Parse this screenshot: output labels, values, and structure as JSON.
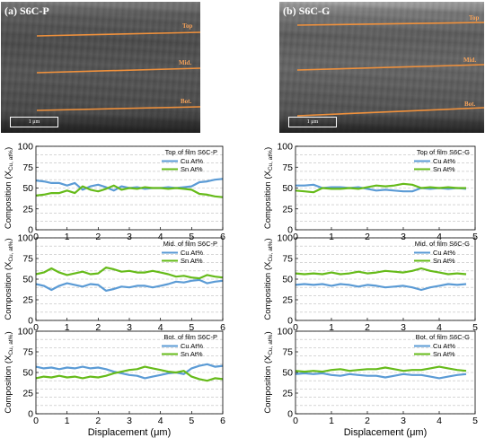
{
  "sem_images": [
    {
      "label": "(a) S6C-P",
      "line_labels": [
        "Top",
        "Mid.",
        "Bot."
      ],
      "scale_label": "1 μm"
    },
    {
      "label": "(b) S6C-G",
      "line_labels": [
        "Top",
        "Mid.",
        "Bot."
      ],
      "scale_label": "1 μm"
    }
  ],
  "colors": {
    "cu": "#5b9bd5",
    "sn": "#66bb1a",
    "sem_line": "#f0913c"
  },
  "chart_data": [
    {
      "type": "line",
      "title": "Top of film S6C-P",
      "xlabel": "",
      "ylabel": "Composition (XCu, at%)",
      "xlim": [
        0,
        6
      ],
      "ylim": [
        0,
        100
      ],
      "xticks": [
        0,
        1,
        2,
        3,
        4,
        5,
        6
      ],
      "yticks": [
        0,
        25,
        50,
        75,
        100
      ],
      "grid": true,
      "legend": "top-right",
      "series": [
        {
          "name": "Cu At%",
          "x": [
            0,
            0.25,
            0.5,
            0.75,
            1,
            1.25,
            1.5,
            1.75,
            2,
            2.25,
            2.5,
            2.75,
            3,
            3.25,
            3.5,
            3.75,
            4,
            4.25,
            4.5,
            4.75,
            5,
            5.25,
            5.5,
            5.75,
            6
          ],
          "y": [
            59,
            58,
            56,
            56,
            53,
            56,
            48,
            52,
            54,
            51,
            47,
            52,
            50,
            51,
            49,
            50,
            50,
            51,
            50,
            51,
            52,
            57,
            58,
            60,
            61
          ]
        },
        {
          "name": "Sn At%",
          "x": [
            0,
            0.25,
            0.5,
            0.75,
            1,
            1.25,
            1.5,
            1.75,
            2,
            2.25,
            2.5,
            2.75,
            3,
            3.25,
            3.5,
            3.75,
            4,
            4.25,
            4.5,
            4.75,
            5,
            5.25,
            5.5,
            5.75,
            6
          ],
          "y": [
            41,
            42,
            44,
            44,
            47,
            44,
            52,
            48,
            46,
            49,
            53,
            48,
            50,
            49,
            51,
            50,
            50,
            49,
            50,
            49,
            48,
            43,
            42,
            40,
            39
          ]
        }
      ]
    },
    {
      "type": "line",
      "title": "Mid. of film S6C-P",
      "xlabel": "",
      "ylabel": "Composition (XCu, at%)",
      "xlim": [
        0,
        6
      ],
      "ylim": [
        0,
        100
      ],
      "xticks": [
        0,
        1,
        2,
        3,
        4,
        5,
        6
      ],
      "yticks": [
        0,
        25,
        50,
        75,
        100
      ],
      "grid": true,
      "legend": "top-right",
      "series": [
        {
          "name": "Cu At%",
          "x": [
            0,
            0.25,
            0.5,
            0.75,
            1,
            1.25,
            1.5,
            1.75,
            2,
            2.25,
            2.5,
            2.75,
            3,
            3.25,
            3.5,
            3.75,
            4,
            4.25,
            4.5,
            4.75,
            5,
            5.25,
            5.5,
            5.75,
            6
          ],
          "y": [
            44,
            42,
            37,
            42,
            45,
            43,
            41,
            44,
            43,
            36,
            38,
            41,
            40,
            42,
            42,
            40,
            42,
            44,
            47,
            46,
            48,
            49,
            45,
            47,
            48
          ]
        },
        {
          "name": "Sn At%",
          "x": [
            0,
            0.25,
            0.5,
            0.75,
            1,
            1.25,
            1.5,
            1.75,
            2,
            2.25,
            2.5,
            2.75,
            3,
            3.25,
            3.5,
            3.75,
            4,
            4.25,
            4.5,
            4.75,
            5,
            5.25,
            5.5,
            5.75,
            6
          ],
          "y": [
            56,
            58,
            63,
            58,
            55,
            57,
            59,
            56,
            57,
            64,
            62,
            59,
            60,
            58,
            58,
            60,
            58,
            56,
            53,
            54,
            52,
            51,
            55,
            53,
            52
          ]
        }
      ]
    },
    {
      "type": "line",
      "title": "Bot. of film S6C-P",
      "xlabel": "Displacement (μm)",
      "ylabel": "Composition (XCu, at%)",
      "xlim": [
        0,
        6
      ],
      "ylim": [
        0,
        100
      ],
      "xticks": [
        0,
        1,
        2,
        3,
        4,
        5,
        6
      ],
      "yticks": [
        0,
        25,
        50,
        75,
        100
      ],
      "grid": true,
      "legend": "top-right",
      "series": [
        {
          "name": "Cu At%",
          "x": [
            0,
            0.25,
            0.5,
            0.75,
            1,
            1.25,
            1.5,
            1.75,
            2,
            2.25,
            2.5,
            2.75,
            3,
            3.25,
            3.5,
            3.75,
            4,
            4.25,
            4.5,
            4.75,
            5,
            5.25,
            5.5,
            5.75,
            6
          ],
          "y": [
            57,
            55,
            56,
            54,
            56,
            55,
            57,
            55,
            56,
            54,
            51,
            49,
            47,
            46,
            43,
            45,
            47,
            49,
            50,
            48,
            55,
            58,
            60,
            57,
            58
          ]
        },
        {
          "name": "Sn At%",
          "x": [
            0,
            0.25,
            0.5,
            0.75,
            1,
            1.25,
            1.5,
            1.75,
            2,
            2.25,
            2.5,
            2.75,
            3,
            3.25,
            3.5,
            3.75,
            4,
            4.25,
            4.5,
            4.75,
            5,
            5.25,
            5.5,
            5.75,
            6
          ],
          "y": [
            43,
            45,
            44,
            46,
            44,
            45,
            43,
            45,
            44,
            46,
            49,
            51,
            53,
            54,
            57,
            55,
            53,
            51,
            50,
            52,
            45,
            42,
            40,
            43,
            42
          ]
        }
      ]
    },
    {
      "type": "line",
      "title": "Top of film S6C-G",
      "xlabel": "",
      "ylabel": "Composition (XCu, at%)",
      "xlim": [
        0,
        5
      ],
      "ylim": [
        0,
        100
      ],
      "xticks": [
        0,
        1,
        2,
        3,
        4,
        5
      ],
      "yticks": [
        0,
        25,
        50,
        75,
        100
      ],
      "grid": true,
      "legend": "top-right",
      "series": [
        {
          "name": "Cu At%",
          "x": [
            0,
            0.25,
            0.5,
            0.75,
            1,
            1.25,
            1.5,
            1.75,
            2,
            2.25,
            2.5,
            2.75,
            3,
            3.25,
            3.5,
            3.75,
            4,
            4.25,
            4.5,
            4.75
          ],
          "y": [
            53,
            53,
            54,
            50,
            51,
            51,
            50,
            51,
            49,
            47,
            48,
            47,
            46,
            46,
            50,
            49,
            50,
            49,
            50,
            49
          ]
        },
        {
          "name": "Sn At%",
          "x": [
            0,
            0.25,
            0.5,
            0.75,
            1,
            1.25,
            1.5,
            1.75,
            2,
            2.25,
            2.5,
            2.75,
            3,
            3.25,
            3.5,
            3.75,
            4,
            4.25,
            4.5,
            4.75
          ],
          "y": [
            47,
            46,
            45,
            50,
            49,
            49,
            50,
            49,
            51,
            53,
            52,
            53,
            55,
            54,
            50,
            51,
            50,
            51,
            50,
            50
          ]
        }
      ]
    },
    {
      "type": "line",
      "title": "Mid. of film S6C-G",
      "xlabel": "",
      "ylabel": "Composition (XCu, at%)",
      "xlim": [
        0,
        5
      ],
      "ylim": [
        0,
        100
      ],
      "xticks": [
        0,
        1,
        2,
        3,
        4,
        5
      ],
      "yticks": [
        0,
        25,
        50,
        75,
        100
      ],
      "grid": true,
      "legend": "top-right",
      "series": [
        {
          "name": "Cu At%",
          "x": [
            0,
            0.25,
            0.5,
            0.75,
            1,
            1.25,
            1.5,
            1.75,
            2,
            2.25,
            2.5,
            2.75,
            3,
            3.25,
            3.5,
            3.75,
            4,
            4.25,
            4.5,
            4.75
          ],
          "y": [
            43,
            44,
            43,
            44,
            42,
            44,
            43,
            41,
            43,
            42,
            40,
            41,
            42,
            40,
            37,
            40,
            42,
            44,
            43,
            44
          ]
        },
        {
          "name": "Sn At%",
          "x": [
            0,
            0.25,
            0.5,
            0.75,
            1,
            1.25,
            1.5,
            1.75,
            2,
            2.25,
            2.5,
            2.75,
            3,
            3.25,
            3.5,
            3.75,
            4,
            4.25,
            4.5,
            4.75
          ],
          "y": [
            57,
            56,
            57,
            56,
            58,
            56,
            57,
            59,
            57,
            58,
            60,
            59,
            58,
            60,
            63,
            60,
            58,
            56,
            57,
            56
          ]
        }
      ]
    },
    {
      "type": "line",
      "title": "Bot. of film S6C-G",
      "xlabel": "Displacement (μm)",
      "ylabel": "Composition (XCu, at%)",
      "xlim": [
        0,
        5
      ],
      "ylim": [
        0,
        100
      ],
      "xticks": [
        0,
        1,
        2,
        3,
        4,
        5
      ],
      "yticks": [
        0,
        25,
        50,
        75,
        100
      ],
      "grid": true,
      "legend": "top-right",
      "series": [
        {
          "name": "Cu At%",
          "x": [
            0,
            0.25,
            0.5,
            0.75,
            1,
            1.25,
            1.5,
            1.75,
            2,
            2.25,
            2.5,
            2.75,
            3,
            3.25,
            3.5,
            3.75,
            4,
            4.25,
            4.5,
            4.75
          ],
          "y": [
            48,
            49,
            48,
            49,
            47,
            46,
            48,
            47,
            46,
            46,
            44,
            46,
            48,
            47,
            47,
            45,
            43,
            45,
            47,
            48
          ]
        },
        {
          "name": "Sn At%",
          "x": [
            0,
            0.25,
            0.5,
            0.75,
            1,
            1.25,
            1.5,
            1.75,
            2,
            2.25,
            2.5,
            2.75,
            3,
            3.25,
            3.5,
            3.75,
            4,
            4.25,
            4.5,
            4.75
          ],
          "y": [
            52,
            51,
            52,
            51,
            53,
            54,
            52,
            53,
            54,
            54,
            56,
            54,
            52,
            53,
            53,
            55,
            57,
            55,
            53,
            52
          ]
        }
      ]
    }
  ]
}
